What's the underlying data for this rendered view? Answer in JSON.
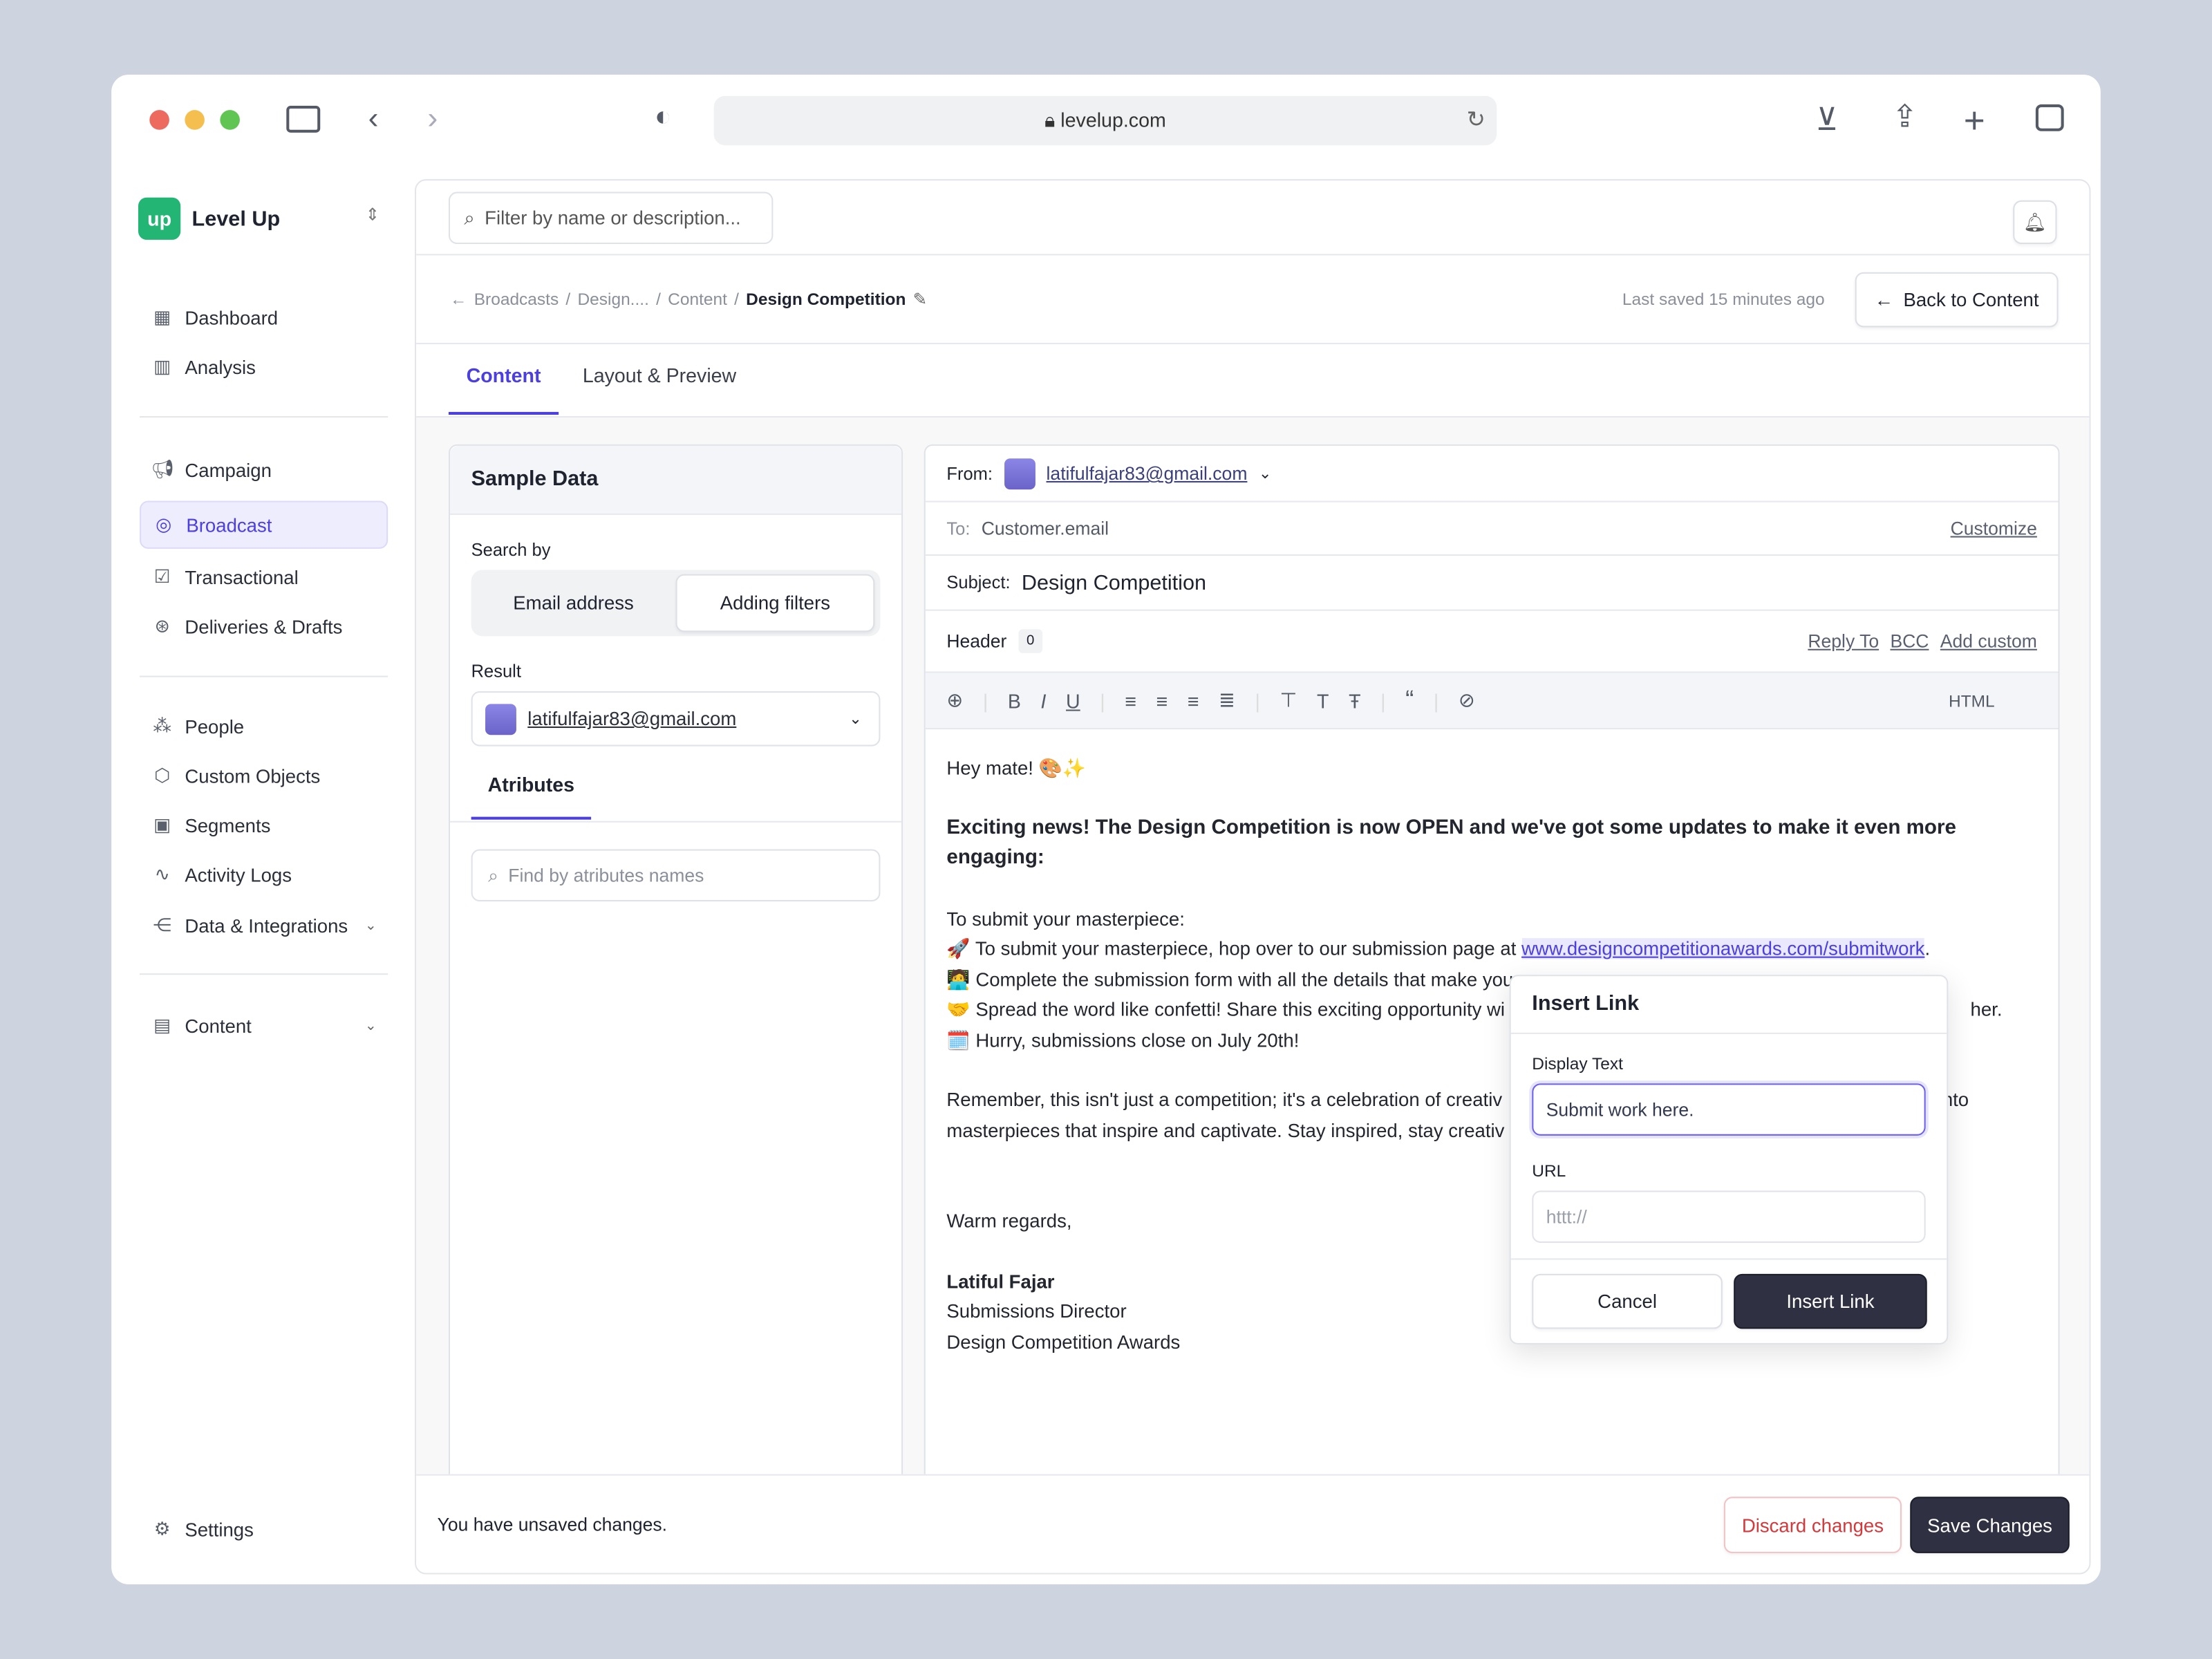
{
  "browser": {
    "url": "levelup.com"
  },
  "app": {
    "logo": "up",
    "name": "Level Up",
    "brand_color": "#22b573",
    "accent": "#4b3fe0"
  },
  "sidebar": {
    "items": [
      {
        "label": "Dashboard",
        "icon": "grid-icon"
      },
      {
        "label": "Analysis",
        "icon": "bar-chart-icon"
      },
      {
        "label": "Campaign",
        "icon": "megaphone-icon"
      },
      {
        "label": "Broadcast",
        "icon": "broadcast-icon",
        "active": true
      },
      {
        "label": "Transactional",
        "icon": "transactional-icon"
      },
      {
        "label": "Deliveries & Drafts",
        "icon": "drafts-icon"
      },
      {
        "label": "People",
        "icon": "people-icon"
      },
      {
        "label": "Custom Objects",
        "icon": "cube-icon"
      },
      {
        "label": "Segments",
        "icon": "segments-icon"
      },
      {
        "label": "Activity Logs",
        "icon": "activity-icon"
      },
      {
        "label": "Data & Integrations",
        "icon": "integrations-icon"
      },
      {
        "label": "Content",
        "icon": "content-icon"
      }
    ],
    "settings": "Settings"
  },
  "topbar": {
    "search_placeholder": "Filter by name or description..."
  },
  "breadcrumb": {
    "items": [
      "Broadcasts",
      "Design....",
      "Content"
    ],
    "current": "Design Competition"
  },
  "header": {
    "last_saved": "Last saved 15 minutes ago",
    "back": "Back to Content"
  },
  "tabs": [
    {
      "label": "Content",
      "active": true
    },
    {
      "label": "Layout & Preview"
    }
  ],
  "sample": {
    "title": "Sample Data",
    "search_by": "Search by",
    "options": [
      "Email address",
      "Adding filters"
    ],
    "result_label": "Result",
    "result": "latifulfajar83@gmail.com",
    "attr_tab": "Atributes",
    "attr_placeholder": "Find by atributes names"
  },
  "email": {
    "from_label": "From:",
    "from": "latifulfajar83@gmail.com",
    "to_label": "To:",
    "to": "Customer.email",
    "customize": "Customize",
    "subject_label": "Subject:",
    "subject": "Design Competition",
    "header_label": "Header",
    "header_count": "0",
    "reply_to": "Reply To",
    "bcc": "BCC",
    "add_custom": "Add custom",
    "html": "HTML",
    "body": {
      "greeting": "Hey mate! 🎨✨",
      "headline": "Exciting news! The Design Competition is now OPEN and we've got some updates to make it even more engaging:",
      "intro": "To submit your masterpiece:",
      "l1": "🚀 To submit your masterpiece, hop over to our submission page at ",
      "l1_link": "www.designcompetitionawards.com/submitwork",
      "l2": "🧑‍💻 Complete the submission form with all the details that make you",
      "l3": "🤝 Spread the word like confetti! Share this exciting opportunity wi",
      "l3_end": "her.",
      "l4": "🗓️ Hurry, submissions close on July 20th!",
      "p1": "Remember, this isn't just a competition; it's a celebration of creativ",
      "p1_end": "nto",
      "p2": "masterpieces that inspire and captivate. Stay inspired, stay creativ",
      "regards": "Warm regards,",
      "name": "Latiful Fajar",
      "role": "Submissions Director",
      "org": "Design Competition Awards"
    }
  },
  "dialog": {
    "title": "Insert Link",
    "display_label": "Display Text",
    "display_value": "Submit work here.",
    "url_label": "URL",
    "url_placeholder": "httt://",
    "cancel": "Cancel",
    "insert": "Insert Link"
  },
  "footer": {
    "status": "You have unsaved changes.",
    "discard": "Discard changes",
    "save": "Save Changes"
  }
}
